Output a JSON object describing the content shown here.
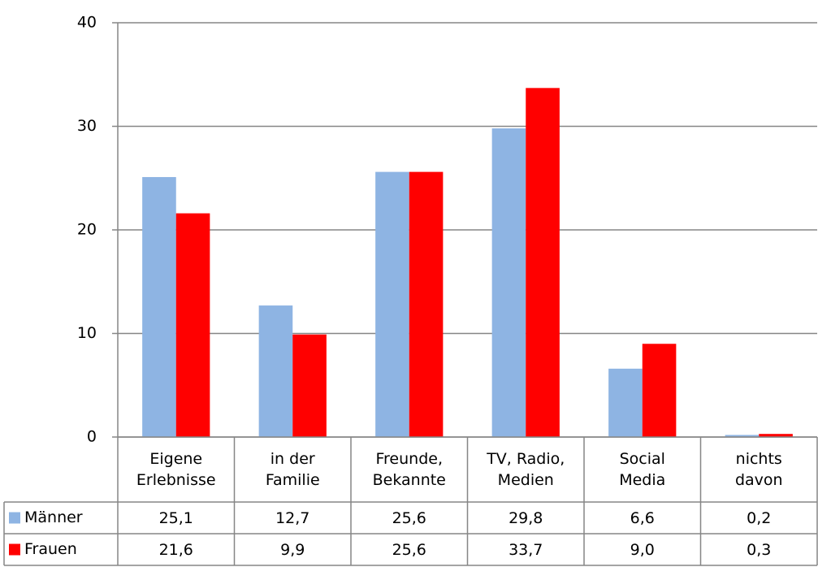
{
  "chart_data": {
    "type": "bar",
    "categories": [
      "Eigene\nErlebnisse",
      "in der\nFamilie",
      "Freunde,\nBekannte",
      "TV, Radio,\nMedien",
      "Social\nMedia",
      "nichts\ndavon"
    ],
    "series": [
      {
        "name": "Männer",
        "color": "#8eb4e3",
        "values": [
          25.1,
          12.7,
          25.6,
          29.8,
          6.6,
          0.2
        ],
        "value_labels": [
          "25,1",
          "12,7",
          "25,6",
          "29,8",
          "6,6",
          "0,2"
        ]
      },
      {
        "name": "Frauen",
        "color": "#ff0000",
        "values": [
          21.6,
          9.9,
          25.6,
          33.7,
          9.0,
          0.3
        ],
        "value_labels": [
          "21,6",
          "9,9",
          "25,6",
          "33,7",
          "9,0",
          "0,3"
        ]
      }
    ],
    "ylim": [
      0,
      40
    ],
    "yticks": [
      0,
      10,
      20,
      30,
      40
    ],
    "grid": true
  }
}
